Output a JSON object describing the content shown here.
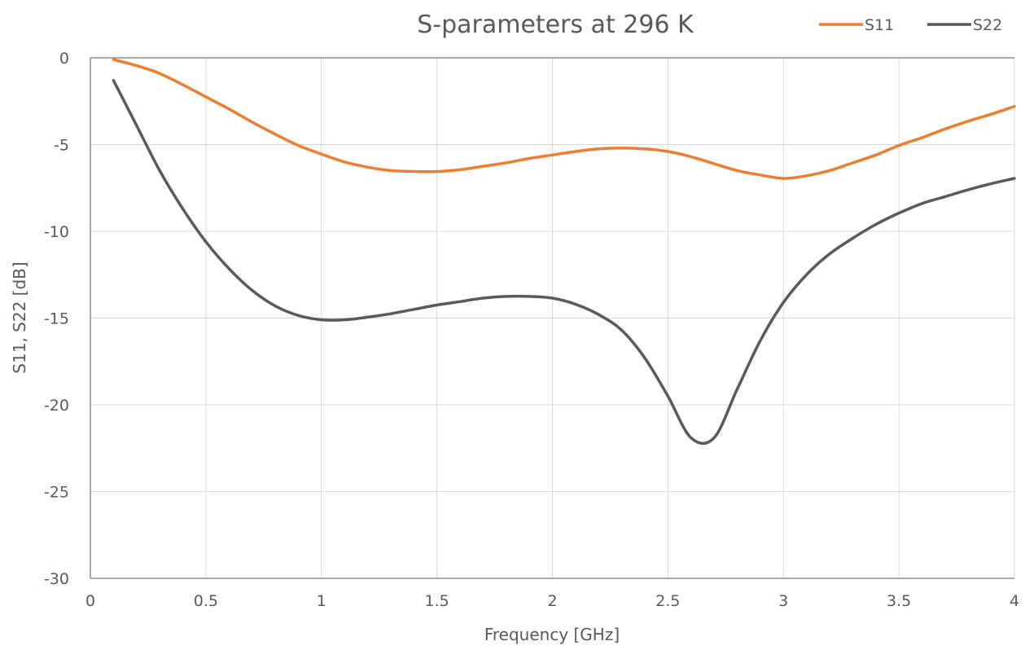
{
  "chart_data": {
    "type": "line",
    "title": "S-parameters at 296 K",
    "xlabel": "Frequency [GHz]",
    "ylabel": "S11, S22 [dB]",
    "xlim": [
      0,
      4
    ],
    "ylim": [
      -30,
      0
    ],
    "xticks": [
      "0",
      "0.5",
      "1",
      "1.5",
      "2",
      "2.5",
      "3",
      "3.5",
      "4"
    ],
    "yticks": [
      "0",
      "-5",
      "-10",
      "-15",
      "-20",
      "-25",
      "-30"
    ],
    "grid": true,
    "legend_position": "top-right",
    "x": [
      0.1,
      0.2,
      0.3,
      0.4,
      0.5,
      0.6,
      0.7,
      0.8,
      0.9,
      1.0,
      1.1,
      1.2,
      1.3,
      1.4,
      1.5,
      1.6,
      1.7,
      1.8,
      1.9,
      2.0,
      2.1,
      2.2,
      2.3,
      2.4,
      2.5,
      2.6,
      2.7,
      2.8,
      2.9,
      3.0,
      3.1,
      3.2,
      3.3,
      3.4,
      3.5,
      3.6,
      3.7,
      3.8,
      3.9,
      4.0
    ],
    "series": [
      {
        "name": "S11",
        "color": "#ed7d31",
        "values": [
          -0.1,
          -0.45,
          -0.9,
          -1.55,
          -2.25,
          -2.95,
          -3.7,
          -4.4,
          -5.05,
          -5.55,
          -6.0,
          -6.3,
          -6.5,
          -6.55,
          -6.55,
          -6.45,
          -6.25,
          -6.05,
          -5.8,
          -5.6,
          -5.4,
          -5.25,
          -5.2,
          -5.25,
          -5.4,
          -5.7,
          -6.1,
          -6.5,
          -6.75,
          -6.95,
          -6.8,
          -6.5,
          -6.05,
          -5.6,
          -5.05,
          -4.6,
          -4.1,
          -3.65,
          -3.25,
          -2.8
        ]
      },
      {
        "name": "S22",
        "color": "#595959",
        "values": [
          -1.3,
          -3.9,
          -6.5,
          -8.7,
          -10.6,
          -12.15,
          -13.4,
          -14.3,
          -14.85,
          -15.1,
          -15.1,
          -14.95,
          -14.75,
          -14.5,
          -14.25,
          -14.05,
          -13.85,
          -13.75,
          -13.75,
          -13.85,
          -14.2,
          -14.8,
          -15.7,
          -17.3,
          -19.5,
          -21.9,
          -21.9,
          -19.1,
          -16.3,
          -14.1,
          -12.5,
          -11.3,
          -10.4,
          -9.6,
          -8.95,
          -8.4,
          -8.0,
          -7.6,
          -7.25,
          -6.95
        ]
      }
    ]
  }
}
